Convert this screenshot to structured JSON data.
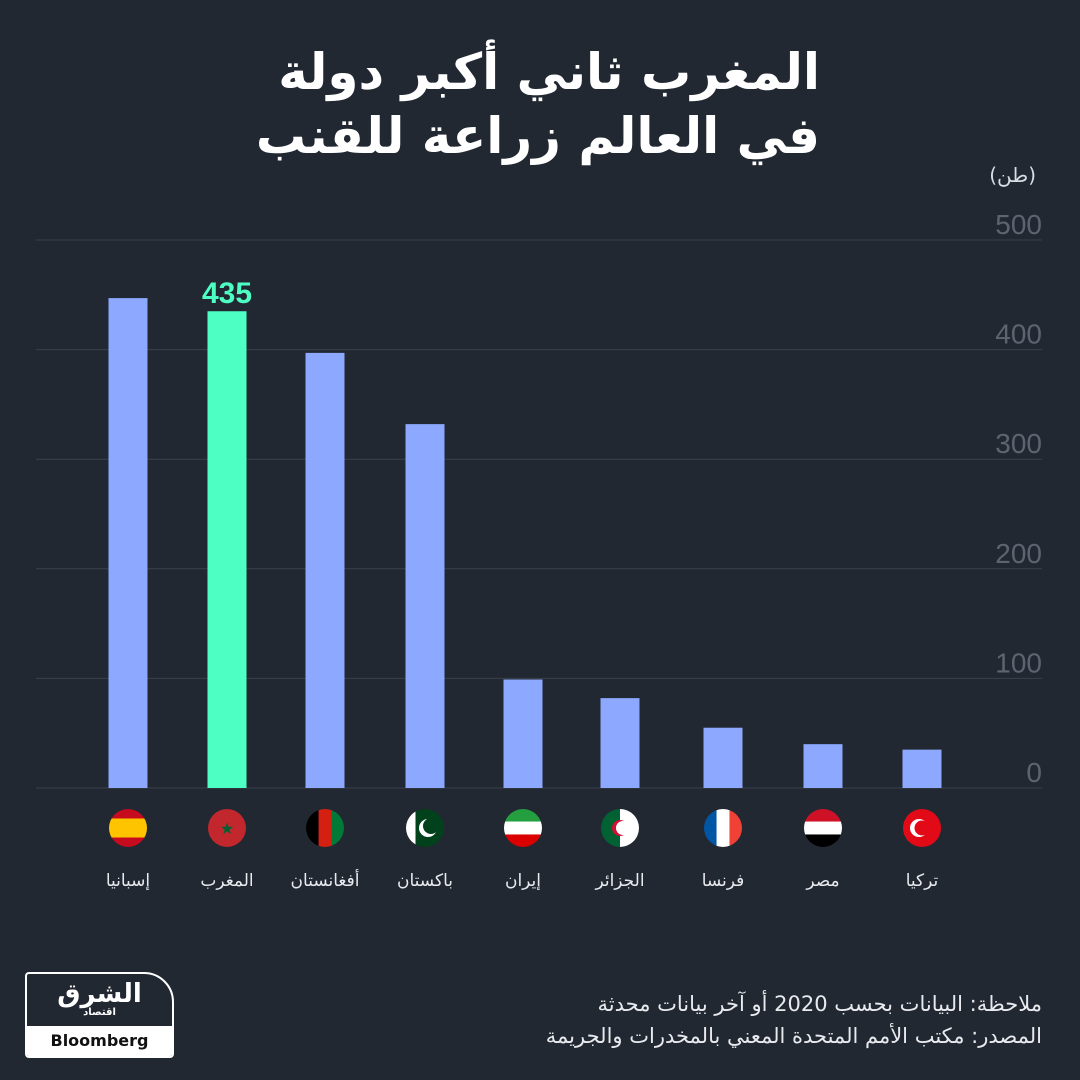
{
  "title": [
    "المغرب ثاني أكبر دولة",
    "في العالم زراعة للقنب"
  ],
  "unit": "(طن)",
  "chart_data": {
    "type": "bar",
    "categories": [
      "إسبانيا",
      "المغرب",
      "أفغانستان",
      "باكستان",
      "إيران",
      "الجزائر",
      "فرنسا",
      "مصر",
      "تركيا"
    ],
    "values": [
      447,
      435,
      397,
      332,
      99,
      82,
      55,
      40,
      35
    ],
    "highlight_index": 1,
    "highlight_label": "435",
    "ylim": [
      0,
      500
    ],
    "yticks": [
      0,
      100,
      200,
      300,
      400,
      500
    ],
    "grid": true,
    "colors": {
      "bar": "#8ca8ff",
      "highlight": "#4dffc3",
      "grid": "#3b414c",
      "tick": "#5d6470"
    },
    "flags": [
      "spain-flag",
      "morocco-flag",
      "afghanistan-flag",
      "pakistan-flag",
      "iran-flag",
      "algeria-flag",
      "france-flag",
      "egypt-flag",
      "turkey-flag"
    ]
  },
  "footer": {
    "note": "ملاحظة: البيانات بحسب 2020 أو آخر بيانات محدثة",
    "source": "المصدر: مكتب الأمم المتحدة المعني بالمخدرات والجريمة"
  },
  "logo": {
    "name": "الشرق",
    "sub": "اقتصاد",
    "partner": "Bloomberg"
  }
}
